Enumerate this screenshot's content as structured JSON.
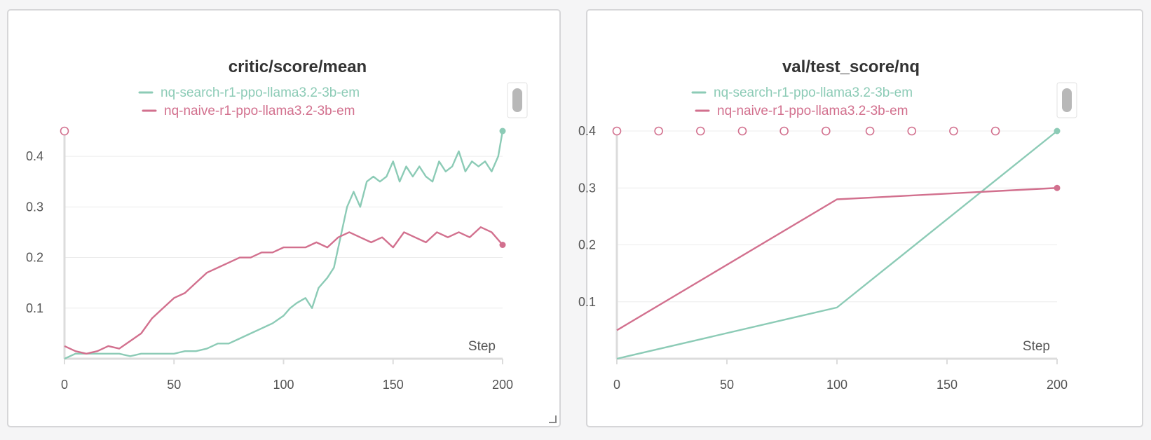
{
  "colors": {
    "search": "#8ccbb6",
    "naive": "#d2708e",
    "axis": "#dcdcdc",
    "grid": "#ececec",
    "text": "#555555"
  },
  "panels": [
    {
      "title": "critic/score/mean",
      "legend": [
        {
          "name": "nq-search-r1-ppo-llama3.2-3b-em",
          "key": "search"
        },
        {
          "name": "nq-naive-r1-ppo-llama3.2-3b-em",
          "key": "naive"
        }
      ],
      "x_axis_label": "Step"
    },
    {
      "title": "val/test_score/nq",
      "legend": [
        {
          "name": "nq-search-r1-ppo-llama3.2-3b-em",
          "key": "search"
        },
        {
          "name": "nq-naive-r1-ppo-llama3.2-3b-em",
          "key": "naive"
        }
      ],
      "x_axis_label": "Step"
    }
  ],
  "chart_data": [
    {
      "type": "line",
      "title": "critic/score/mean",
      "xlabel": "Step",
      "ylabel": "",
      "xlim": [
        0,
        200
      ],
      "ylim": [
        0,
        0.45
      ],
      "xticks": [
        0,
        50,
        100,
        150,
        200
      ],
      "yticks": [
        0.1,
        0.2,
        0.3,
        0.4
      ],
      "grid": true,
      "legend_position": "top",
      "series": [
        {
          "name": "nq-search-r1-ppo-llama3.2-3b-em",
          "key": "search",
          "x": [
            0,
            5,
            10,
            15,
            20,
            25,
            30,
            35,
            40,
            45,
            50,
            55,
            60,
            65,
            70,
            75,
            80,
            85,
            90,
            95,
            100,
            103,
            106,
            110,
            113,
            116,
            120,
            123,
            126,
            129,
            132,
            135,
            138,
            141,
            144,
            147,
            150,
            153,
            156,
            159,
            162,
            165,
            168,
            171,
            174,
            177,
            180,
            183,
            186,
            189,
            192,
            195,
            198,
            200
          ],
          "values": [
            0.0,
            0.01,
            0.01,
            0.01,
            0.01,
            0.01,
            0.005,
            0.01,
            0.01,
            0.01,
            0.01,
            0.015,
            0.015,
            0.02,
            0.03,
            0.03,
            0.04,
            0.05,
            0.06,
            0.07,
            0.085,
            0.1,
            0.11,
            0.12,
            0.1,
            0.14,
            0.16,
            0.18,
            0.24,
            0.3,
            0.33,
            0.3,
            0.35,
            0.36,
            0.35,
            0.36,
            0.39,
            0.35,
            0.38,
            0.36,
            0.38,
            0.36,
            0.35,
            0.39,
            0.37,
            0.38,
            0.41,
            0.37,
            0.39,
            0.38,
            0.39,
            0.37,
            0.4,
            0.45
          ]
        },
        {
          "name": "nq-naive-r1-ppo-llama3.2-3b-em",
          "key": "naive",
          "x": [
            0,
            5,
            10,
            15,
            20,
            25,
            30,
            35,
            40,
            45,
            50,
            55,
            60,
            65,
            70,
            75,
            80,
            85,
            90,
            95,
            100,
            105,
            110,
            115,
            120,
            125,
            130,
            135,
            140,
            145,
            150,
            155,
            160,
            165,
            170,
            175,
            180,
            185,
            190,
            195,
            200
          ],
          "values": [
            0.025,
            0.015,
            0.01,
            0.015,
            0.025,
            0.02,
            0.035,
            0.05,
            0.08,
            0.1,
            0.12,
            0.13,
            0.15,
            0.17,
            0.18,
            0.19,
            0.2,
            0.2,
            0.21,
            0.21,
            0.22,
            0.22,
            0.22,
            0.23,
            0.22,
            0.24,
            0.25,
            0.24,
            0.23,
            0.24,
            0.22,
            0.25,
            0.24,
            0.23,
            0.25,
            0.24,
            0.25,
            0.24,
            0.26,
            0.25,
            0.225
          ]
        }
      ]
    },
    {
      "type": "line",
      "title": "val/test_score/nq",
      "xlabel": "Step",
      "ylabel": "",
      "xlim": [
        0,
        200
      ],
      "ylim": [
        0,
        0.4
      ],
      "xticks": [
        0,
        50,
        100,
        150,
        200
      ],
      "yticks": [
        0.1,
        0.2,
        0.3,
        0.4
      ],
      "grid": true,
      "legend_position": "top",
      "series": [
        {
          "name": "nq-search-r1-ppo-llama3.2-3b-em",
          "key": "search",
          "x": [
            0,
            100,
            200
          ],
          "values": [
            0.0,
            0.09,
            0.4
          ]
        },
        {
          "name": "nq-naive-r1-ppo-llama3.2-3b-em",
          "key": "naive",
          "x": [
            0,
            100,
            200
          ],
          "values": [
            0.05,
            0.28,
            0.3
          ]
        }
      ],
      "marker_steps": [
        0,
        19,
        38,
        57,
        76,
        95,
        115,
        134,
        153,
        172
      ]
    }
  ]
}
